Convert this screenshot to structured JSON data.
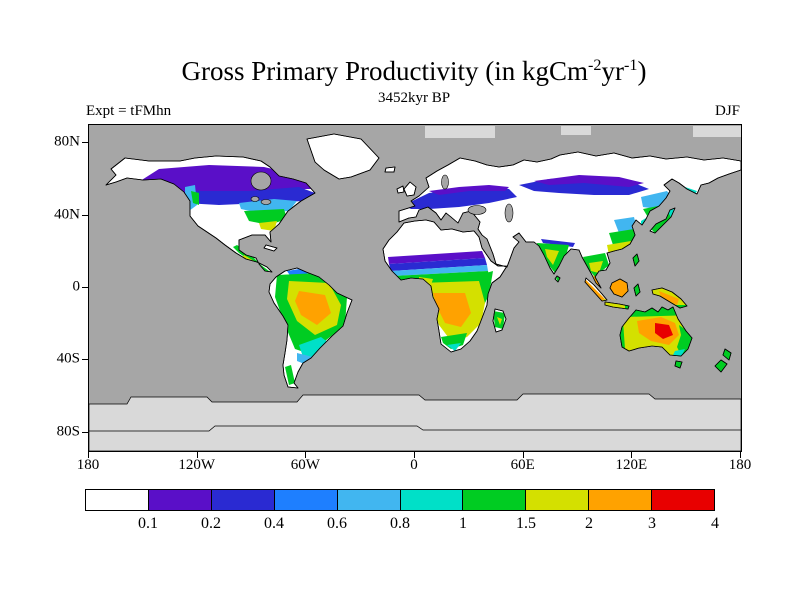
{
  "figure": {
    "title_parts": {
      "prefix": "Gross Primary Productivity (in kgCm",
      "sup1": "-2",
      "mid": "yr",
      "sup2": "-1",
      "suffix": ")"
    },
    "title_plain": "Gross Primary Productivity (in kgCm-2yr-1)",
    "subtitle": "3452kyr BP",
    "experiment_label": "Expt = tFMhn",
    "season_label": "DJF"
  },
  "axes": {
    "lat_ticks": [
      {
        "label": "80N",
        "lat": 80
      },
      {
        "label": "40N",
        "lat": 40
      },
      {
        "label": "0",
        "lat": 0
      },
      {
        "label": "40S",
        "lat": -40
      },
      {
        "label": "80S",
        "lat": -80
      }
    ],
    "lon_ticks": [
      {
        "label": "180",
        "lon": -180
      },
      {
        "label": "120W",
        "lon": -120
      },
      {
        "label": "60W",
        "lon": -60
      },
      {
        "label": "0",
        "lon": 0
      },
      {
        "label": "60E",
        "lon": 60
      },
      {
        "label": "120E",
        "lon": 120
      },
      {
        "label": "180",
        "lon": 180
      }
    ]
  },
  "chart_data": {
    "type": "heatmap",
    "title": "Gross Primary Productivity (in kgCm-2yr-1)",
    "subtitle": "3452kyr BP",
    "experiment": "Expt = tFMhn",
    "season": "DJF",
    "units": "kgC m-2 yr-1",
    "map": "global equirectangular world map, lat 90N to 90S, lon 180W to 180E",
    "grid": false,
    "colorbar": {
      "legend_position": "bottom",
      "labels": [
        "0.1",
        "0.2",
        "0.4",
        "0.6",
        "0.8",
        "1",
        "1.5",
        "2",
        "3",
        "4"
      ],
      "levels": [
        0.1,
        0.2,
        0.4,
        0.6,
        0.8,
        1,
        1.5,
        2,
        3,
        4
      ],
      "colors": [
        "#ffffff",
        "#5a0fc8",
        "#2a2ad2",
        "#1e7fff",
        "#41b6f0",
        "#00e0c8",
        "#00cc22",
        "#d4e000",
        "#ffa200",
        "#e80000"
      ]
    },
    "map_colors": {
      "ocean": "#a6a6a6",
      "ice": "#d9d9d9",
      "land_low": "#ffffff",
      "coastline": "#000000"
    },
    "regions": [
      {
        "region": "Amazon basin",
        "value_range": "2-3"
      },
      {
        "region": "Central and southern Africa",
        "value_range": "1.5-3"
      },
      {
        "region": "Sahel band",
        "value_range": "0.1-0.8"
      },
      {
        "region": "Sahara, Arabia, Tibet, high Arctic, Antarctica",
        "value_range": "<0.1"
      },
      {
        "region": "Boreal Canada",
        "value_range": "0.1-0.4"
      },
      {
        "region": "Eastern North America",
        "value_range": "0.4-1.5"
      },
      {
        "region": "Europe and western Russia",
        "value_range": "0.1-0.4"
      },
      {
        "region": "Southern Siberia",
        "value_range": "0.1-0.4"
      },
      {
        "region": "East China, Korea, Japan",
        "value_range": "0.6-1.5"
      },
      {
        "region": "India",
        "value_range": "1-2"
      },
      {
        "region": "Southeast Asia and Indonesia",
        "value_range": "2-4"
      },
      {
        "region": "Northern and central Australia",
        "value_range": "2-4+"
      },
      {
        "region": "Temperate South America",
        "value_range": "0.4-1"
      },
      {
        "region": "New Zealand",
        "value_range": "1-2"
      }
    ]
  }
}
